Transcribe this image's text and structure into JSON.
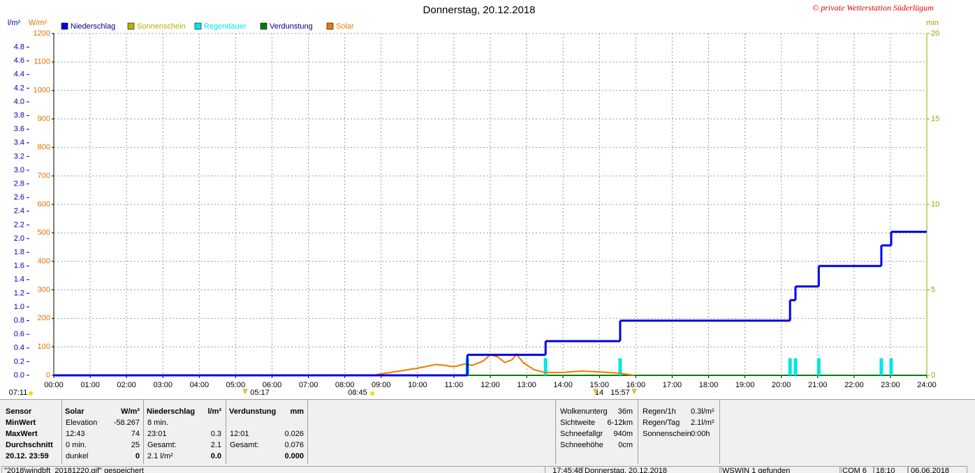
{
  "chart_data": {
    "type": "line",
    "title": "Donnerstag, 20.12.2018",
    "credit": "© private Wetterstation Süderlügum",
    "y_unit": "l/m²",
    "y2_unit": "W/m²",
    "y3_unit": "min",
    "xlim": [
      0,
      24
    ],
    "xticks": [
      {
        "value": 0,
        "label": "00:00"
      },
      {
        "value": 1,
        "label": "01:00"
      },
      {
        "value": 2,
        "label": "02:00"
      },
      {
        "value": 3,
        "label": "03:00"
      },
      {
        "value": 4,
        "label": "04:00"
      },
      {
        "value": 5,
        "label": "05:00"
      },
      {
        "value": 6,
        "label": "06:00"
      },
      {
        "value": 7,
        "label": "07:00"
      },
      {
        "value": 8,
        "label": "08:00"
      },
      {
        "value": 9,
        "label": "09:00"
      },
      {
        "value": 10,
        "label": "10:00"
      },
      {
        "value": 11,
        "label": "11:00"
      },
      {
        "value": 12,
        "label": "12:00"
      },
      {
        "value": 13,
        "label": "13:00"
      },
      {
        "value": 14,
        "label": "14:00"
      },
      {
        "value": 15,
        "label": "15:00"
      },
      {
        "value": 16,
        "label": "16:00"
      },
      {
        "value": 17,
        "label": "17:00"
      },
      {
        "value": 18,
        "label": "18:00"
      },
      {
        "value": 19,
        "label": "19:00"
      },
      {
        "value": 20,
        "label": "20:00"
      },
      {
        "value": 21,
        "label": "21:00"
      },
      {
        "value": 22,
        "label": "22:00"
      },
      {
        "value": 23,
        "label": "23:00"
      },
      {
        "value": 24,
        "label": "24:00"
      }
    ],
    "ylim": [
      0,
      5
    ],
    "yticks": [
      {
        "value": 0,
        "label": "0.0"
      },
      0.2,
      0.4,
      0.6,
      0.8,
      {
        "value": 1,
        "label": "1.0"
      },
      1.2,
      1.4,
      1.6,
      1.8,
      {
        "value": 2,
        "label": "2.0"
      },
      2.2,
      2.4,
      2.6,
      2.8,
      {
        "value": 3,
        "label": "3.0"
      },
      3.2,
      3.4,
      3.6,
      3.8,
      {
        "value": 4,
        "label": "4.0"
      },
      4.2,
      4.4,
      4.6,
      4.8
    ],
    "y2lim": [
      0,
      1200
    ],
    "y2ticks": [
      0,
      100,
      200,
      300,
      400,
      500,
      600,
      700,
      800,
      900,
      1000,
      1100,
      1200
    ],
    "y3lim": [
      0,
      20
    ],
    "y3ticks": [
      0,
      5,
      10,
      15,
      20
    ],
    "grid": true,
    "series": [
      {
        "name": "Niederschlag",
        "color": "#0000e6",
        "style": "step",
        "axis": "y",
        "x": [
          0,
          11.37,
          13.52,
          15.57,
          20.24,
          20.39,
          21.03,
          22.75,
          23.02
        ],
        "values": [
          0,
          0.3,
          0.5,
          0.8,
          1.1,
          1.3,
          1.6,
          1.9,
          2.1
        ]
      },
      {
        "name": "Sonnenschein",
        "color": "#b4b400",
        "style": "bar",
        "axis": "y3",
        "x": [],
        "values": []
      },
      {
        "name": "Regendauer",
        "color": "#00e5e5",
        "style": "bar",
        "axis": "y3",
        "x": [
          11.37,
          13.52,
          15.57,
          20.24,
          20.39,
          21.03,
          22.75,
          23.02
        ],
        "values": [
          1,
          1,
          1,
          1,
          1,
          1,
          1,
          1
        ]
      },
      {
        "name": "Verdunstung",
        "color": "#008000",
        "style": "line",
        "axis": "y",
        "x": [
          11.37,
          24
        ],
        "values": [
          0,
          0
        ]
      },
      {
        "name": "Solar",
        "color": "#f07800",
        "style": "line",
        "axis": "y2",
        "x": [
          8.75,
          9,
          9.5,
          10,
          10.5,
          10.75,
          11,
          11.3,
          11.5,
          11.8,
          12,
          12.2,
          12.4,
          12.6,
          12.72,
          12.9,
          13.2,
          13.5,
          14,
          14.5,
          15,
          15.5,
          15.95
        ],
        "values": [
          0,
          5,
          15,
          25,
          38,
          35,
          30,
          40,
          35,
          50,
          72,
          65,
          45,
          55,
          74,
          45,
          20,
          10,
          10,
          15,
          12,
          8,
          0
        ]
      }
    ],
    "annotations": [
      "07:11",
      "05:17",
      "08:45",
      "14",
      "15:57"
    ]
  },
  "sensor_table": {
    "label_header": "Sensor",
    "row_labels": [
      "MinWert",
      "MaxWert",
      "Durchschnitt",
      "20.12. 23:59"
    ],
    "groups": [
      {
        "name": "Solar",
        "unit": "W/m²",
        "rows": [
          {
            "left": "Elevation",
            "right": "-58.267"
          },
          {
            "left": "12:43",
            "right": "74"
          },
          {
            "left": "0 min.",
            "right": "25"
          },
          {
            "left": "dunkel",
            "right": "0"
          }
        ]
      },
      {
        "name": "Niederschlag",
        "unit": "l/m²",
        "rows": [
          {
            "left": "8 min."
          },
          {
            "left": "23:01",
            "right": "0.3"
          },
          {
            "left": "Gesamt:",
            "right": "2.1"
          },
          {
            "left": "2.1 l/m²",
            "right": "0.0"
          }
        ]
      },
      {
        "name": "Verdunstung",
        "unit": "mm",
        "rows": [
          {},
          {
            "left": "12:01",
            "right": "0.026"
          },
          {
            "left": "Gesamt:",
            "right": "0.076"
          },
          {
            "right": "0.000"
          }
        ]
      }
    ]
  },
  "weather_summary": [
    {
      "label": "Wolkenunterg",
      "value": "36m"
    },
    {
      "label": "Sichtweite",
      "value": "6-12km"
    },
    {
      "label": "Schneefallgr",
      "value": "940m"
    },
    {
      "label": "Schneehöhe",
      "value": "0cm"
    }
  ],
  "rain_summary": [
    {
      "label": "Regen/1h",
      "value": "0.3l/m²"
    },
    {
      "label": "Regen/Tag",
      "value": "2.1l/m²"
    },
    {
      "label": "Sonnenschein",
      "value": "0:00h"
    }
  ],
  "status_bar": [
    "\"2018\\windbft_20181220.gif\" gespeichert",
    "17:45:48",
    "Donnerstag, 20.12.2018",
    "WSWIN 1 gefunden",
    "COM 6",
    "18:10",
    "06.06.2018"
  ]
}
